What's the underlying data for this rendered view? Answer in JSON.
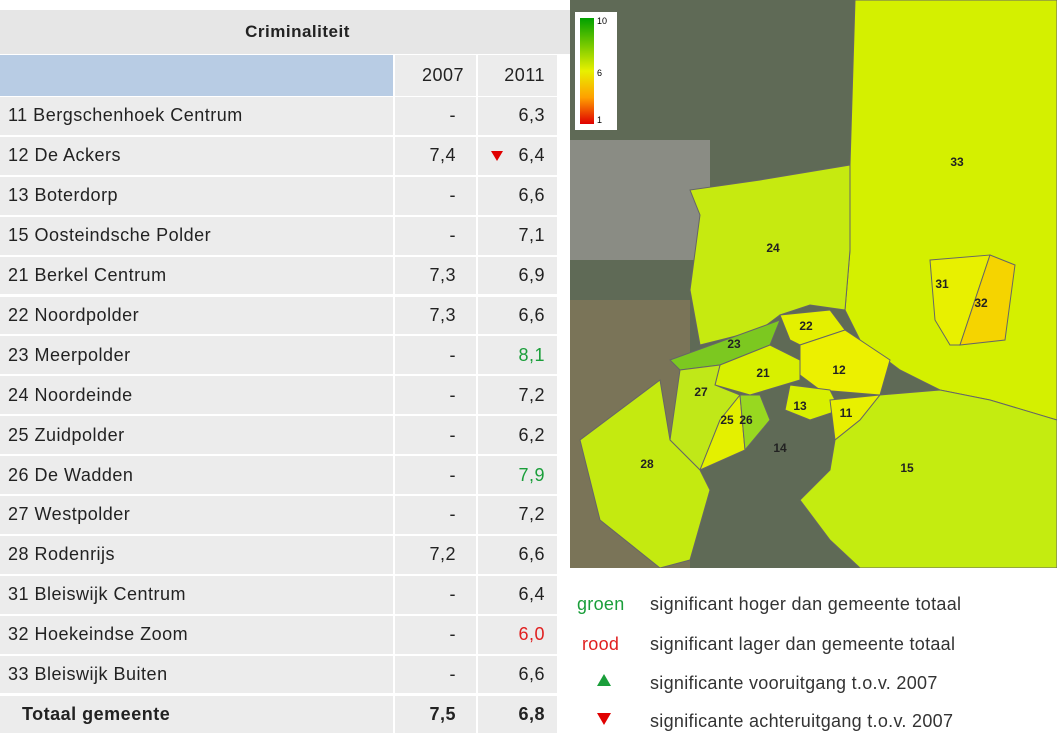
{
  "table": {
    "title": "Criminaliteit",
    "columns": [
      "2007",
      "2011"
    ],
    "rows": [
      {
        "name": "11 Bergschenhoek Centrum",
        "v2007": "-",
        "v2011": "6,3"
      },
      {
        "name": "12 De Ackers",
        "v2007": "7,4",
        "v2011": "6,4",
        "trend": "down"
      },
      {
        "name": "13 Boterdorp",
        "v2007": "-",
        "v2011": "6,6"
      },
      {
        "name": "15 Oosteindsche Polder",
        "v2007": "-",
        "v2011": "7,1"
      },
      {
        "name": "21 Berkel Centrum",
        "v2007": "7,3",
        "v2011": "6,9"
      },
      {
        "name": "22 Noordpolder",
        "v2007": "7,3",
        "v2011": "6,6"
      },
      {
        "name": "23 Meerpolder",
        "v2007": "-",
        "v2011": "8,1",
        "color": "#1a9e3a"
      },
      {
        "name": "24 Noordeinde",
        "v2007": "-",
        "v2011": "7,2"
      },
      {
        "name": "25 Zuidpolder",
        "v2007": "-",
        "v2011": "6,2"
      },
      {
        "name": "26 De Wadden",
        "v2007": "-",
        "v2011": "7,9",
        "color": "#1a9e3a"
      },
      {
        "name": "27 Westpolder",
        "v2007": "-",
        "v2011": "7,2"
      },
      {
        "name": "28 Rodenrijs",
        "v2007": "7,2",
        "v2011": "6,6"
      },
      {
        "name": "31 Bleiswijk Centrum",
        "v2007": "-",
        "v2011": "6,4"
      },
      {
        "name": "32 Hoekeindse Zoom",
        "v2007": "-",
        "v2011": "6,0",
        "color": "#e02020"
      },
      {
        "name": "33 Bleiswijk Buiten",
        "v2007": "-",
        "v2011": "6,6"
      },
      {
        "name": "Totaal gemeente",
        "v2007": "7,5",
        "v2011": "6,8",
        "bold": true
      }
    ]
  },
  "map": {
    "scale": [
      "10",
      "6",
      "1"
    ],
    "labels": [
      "33",
      "24",
      "31",
      "32",
      "22",
      "23",
      "12",
      "21",
      "27",
      "13",
      "11",
      "25",
      "26",
      "14",
      "28",
      "15"
    ]
  },
  "legend": [
    {
      "key": "groen",
      "text": "significant hoger dan gemeente totaal"
    },
    {
      "key": "rood",
      "text": "significant lager dan gemeente totaal"
    },
    {
      "text": "significante vooruitgang t.o.v. 2007"
    },
    {
      "text": "significante achteruitgang t.o.v. 2007"
    }
  ]
}
